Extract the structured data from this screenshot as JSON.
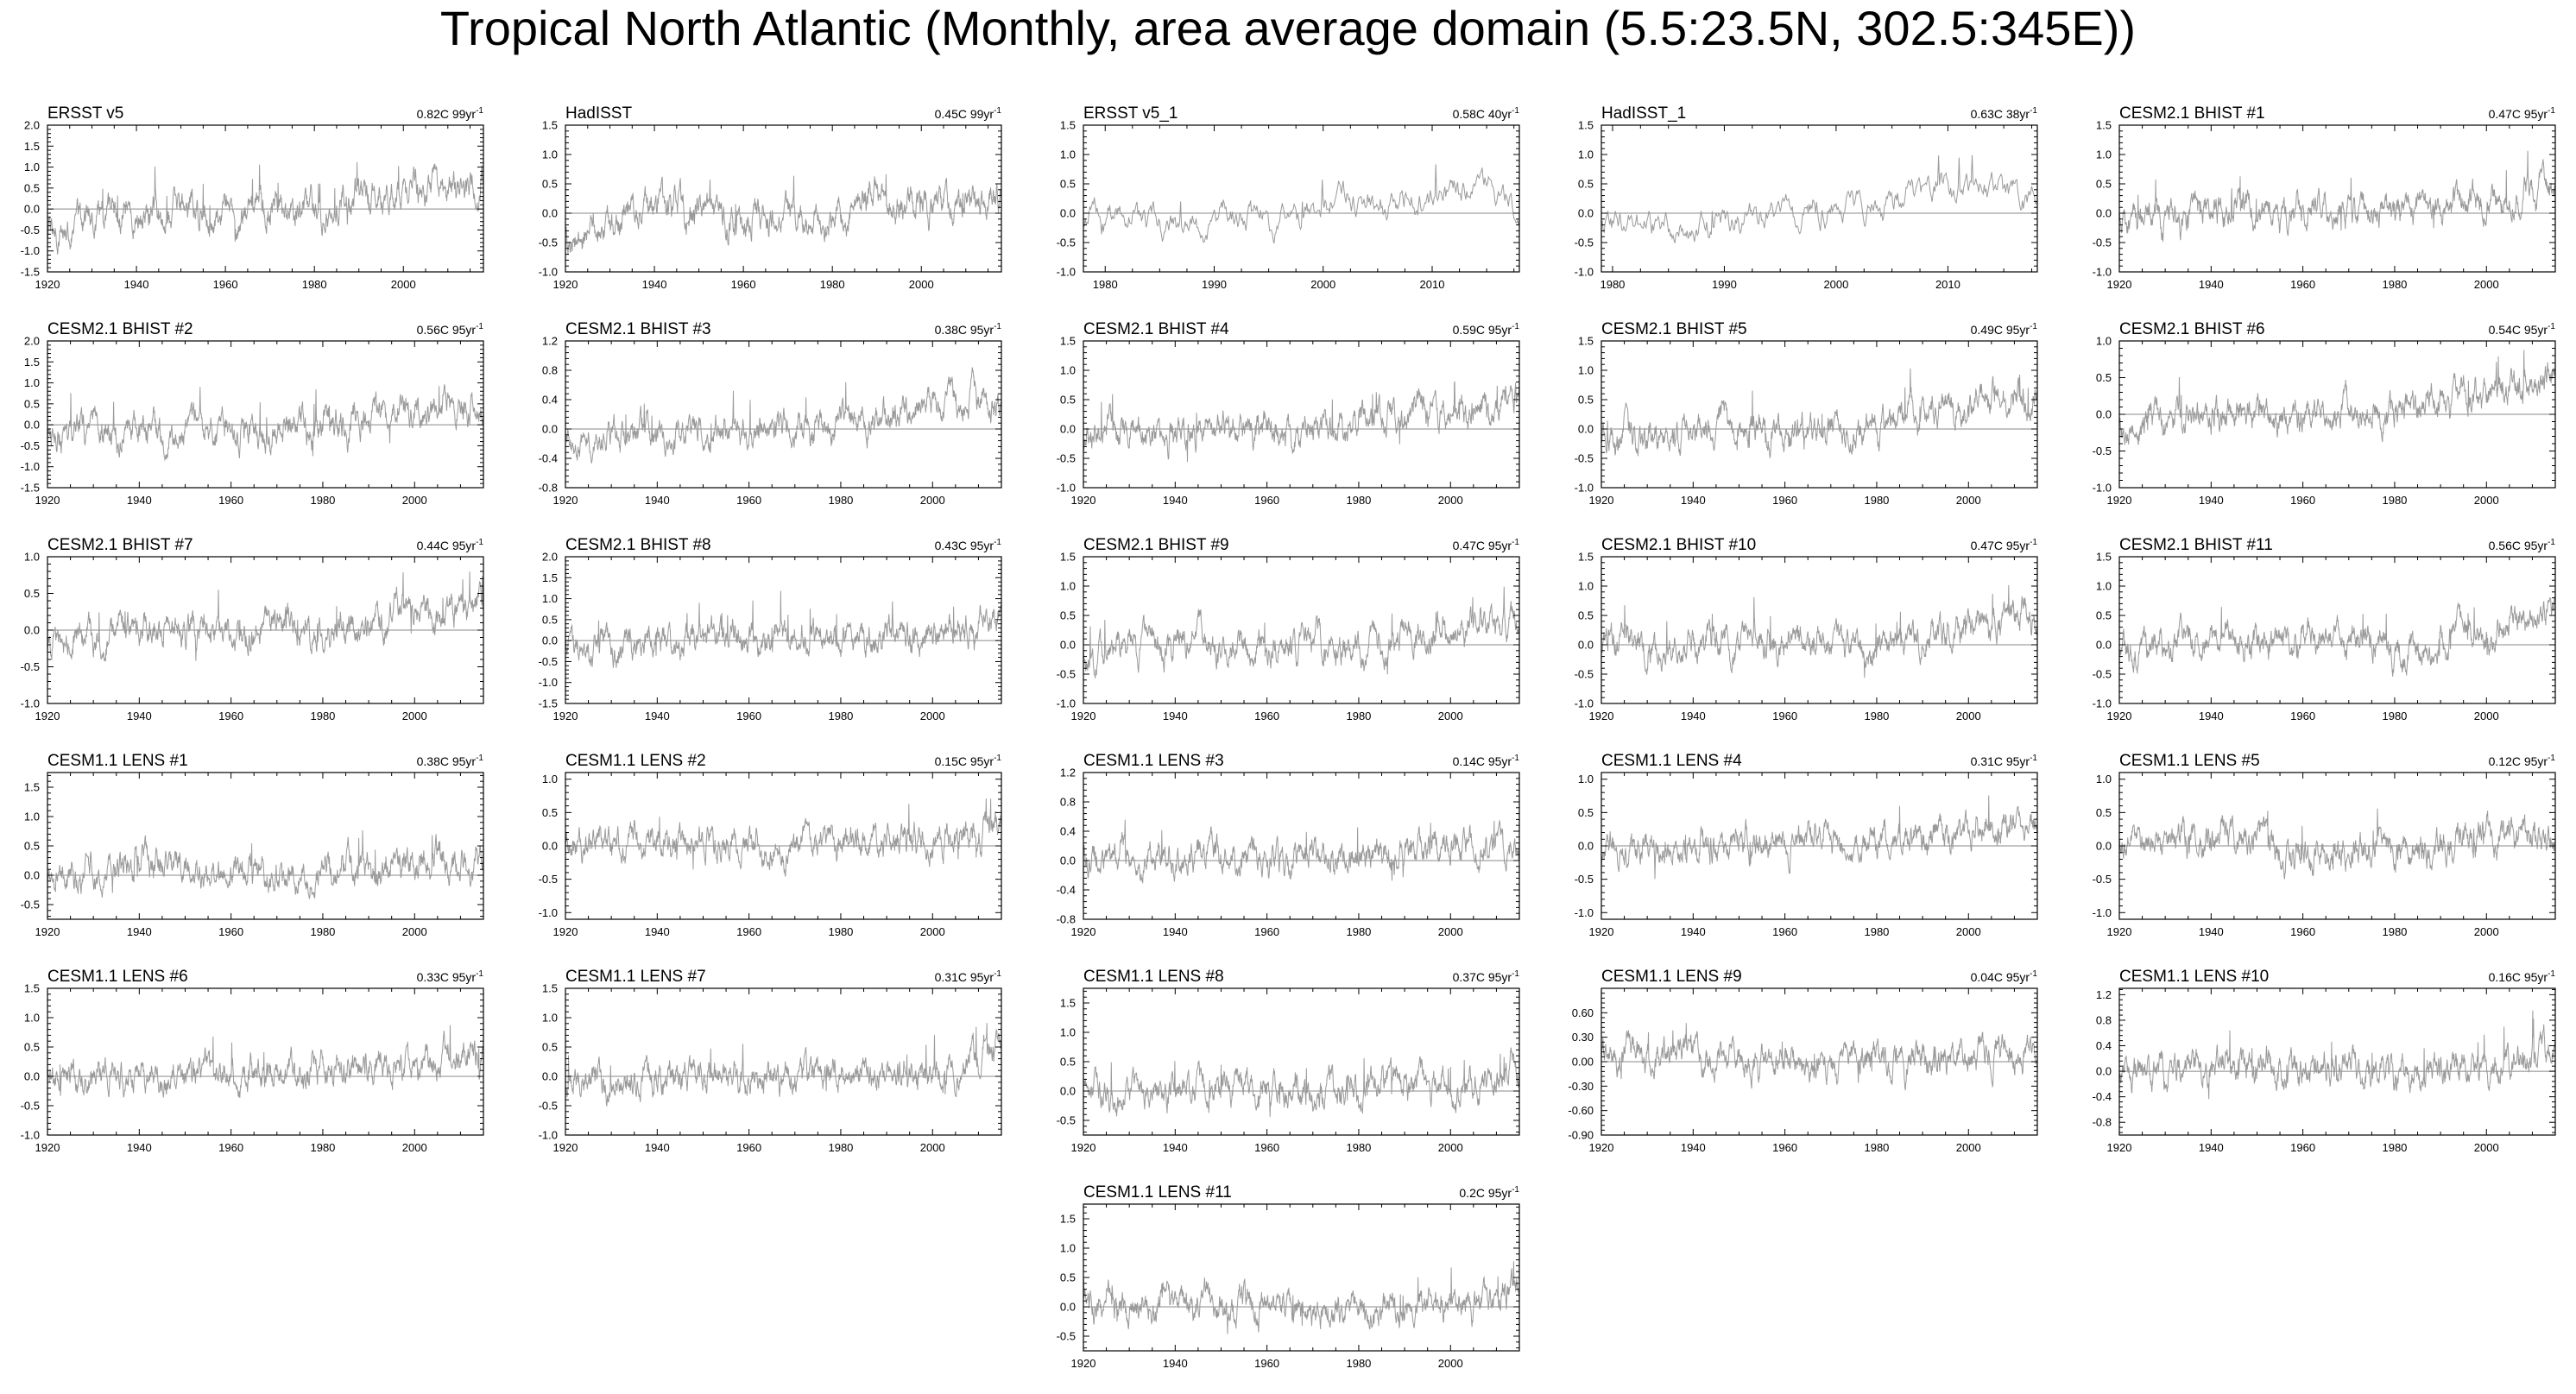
{
  "title": "Tropical North Atlantic (Monthly, area average domain (5.5:23.5N, 302.5:345E))",
  "colors": {
    "series": "#9a9a9a",
    "frame": "#000000",
    "zero": "#888888",
    "text": "#000000"
  },
  "chart_data": [
    {
      "type": "line",
      "title": "ERSST v5",
      "stat": "0.82C 99yr",
      "stat_exp": "-1",
      "xlim": [
        1920,
        2018
      ],
      "xticks": [
        1920,
        1940,
        1960,
        1980,
        2000
      ],
      "ylim": [
        -1.5,
        2.0
      ],
      "yticks": [
        "-1.5",
        "-1.0",
        "-0.5",
        "0.0",
        "0.5",
        "1.0",
        "1.5",
        "2.0"
      ],
      "x": [
        1920,
        1940,
        1960,
        1980,
        2000,
        2018
      ],
      "y": [
        -0.5,
        0.1,
        -0.1,
        0.0,
        0.4,
        0.6
      ]
    },
    {
      "type": "line",
      "title": "HadISST",
      "stat": "0.45C 99yr",
      "stat_exp": "-1",
      "xlim": [
        1920,
        2018
      ],
      "xticks": [
        1920,
        1940,
        1960,
        1980,
        2000
      ],
      "ylim": [
        -1.0,
        1.5
      ],
      "yticks": [
        "-1.0",
        "-0.5",
        "0.0",
        "0.5",
        "1.0",
        "1.5"
      ],
      "x": [
        1920,
        1940,
        1960,
        1980,
        2000,
        2018
      ],
      "y": [
        -0.4,
        0.1,
        0.0,
        0.0,
        0.2,
        0.3
      ]
    },
    {
      "type": "line",
      "title": "ERSST v5_1",
      "stat": "0.58C 40yr",
      "stat_exp": "-1",
      "xlim": [
        1978,
        2018
      ],
      "xticks": [
        1980,
        1990,
        2000,
        2010
      ],
      "ylim": [
        -1.0,
        1.5
      ],
      "yticks": [
        "-1.0",
        "-0.5",
        "0.0",
        "0.5",
        "1.0",
        "1.5"
      ],
      "x": [
        1978,
        1990,
        2000,
        2010,
        2018
      ],
      "y": [
        -0.1,
        -0.1,
        0.1,
        0.3,
        0.2
      ]
    },
    {
      "type": "line",
      "title": "HadISST_1",
      "stat": "0.63C 38yr",
      "stat_exp": "-1",
      "xlim": [
        1979,
        2018
      ],
      "xticks": [
        1980,
        1990,
        2000,
        2010
      ],
      "ylim": [
        -1.0,
        1.5
      ],
      "yticks": [
        "-1.0",
        "-0.5",
        "0.0",
        "0.5",
        "1.0",
        "1.5"
      ],
      "x": [
        1979,
        1990,
        2000,
        2010,
        2018
      ],
      "y": [
        -0.2,
        -0.2,
        0.1,
        0.4,
        0.2
      ]
    },
    {
      "type": "line",
      "title": "CESM2.1 BHIST #1",
      "stat": "0.47C 95yr",
      "stat_exp": "-1",
      "xlim": [
        1920,
        2015
      ],
      "xticks": [
        1920,
        1940,
        1960,
        1980,
        2000
      ],
      "ylim": [
        -1.0,
        1.5
      ],
      "yticks": [
        "-1.0",
        "-0.5",
        "0.0",
        "0.5",
        "1.0",
        "1.5"
      ],
      "x": [
        1920,
        1940,
        1960,
        1980,
        2000,
        2015
      ],
      "y": [
        -0.2,
        0.1,
        0.0,
        0.0,
        0.2,
        0.5
      ]
    },
    {
      "type": "line",
      "title": "CESM2.1 BHIST #2",
      "stat": "0.56C 95yr",
      "stat_exp": "-1",
      "xlim": [
        1920,
        2015
      ],
      "xticks": [
        1920,
        1940,
        1960,
        1980,
        2000
      ],
      "ylim": [
        -1.5,
        2.0
      ],
      "yticks": [
        "-1.5",
        "-1.0",
        "-0.5",
        "0.0",
        "0.5",
        "1.0",
        "1.5",
        "2.0"
      ],
      "x": [
        1920,
        1940,
        1960,
        1980,
        2000,
        2015
      ],
      "y": [
        -0.2,
        0.0,
        -0.1,
        0.0,
        0.3,
        0.5
      ]
    },
    {
      "type": "line",
      "title": "CESM2.1 BHIST #3",
      "stat": "0.38C 95yr",
      "stat_exp": "-1",
      "xlim": [
        1920,
        2015
      ],
      "xticks": [
        1920,
        1940,
        1960,
        1980,
        2000
      ],
      "ylim": [
        -0.8,
        1.2
      ],
      "yticks": [
        "-0.8",
        "-0.4",
        "0.0",
        "0.4",
        "0.8",
        "1.2"
      ],
      "x": [
        1920,
        1940,
        1960,
        1980,
        2000,
        2015
      ],
      "y": [
        -0.1,
        0.0,
        0.0,
        0.1,
        0.3,
        0.4
      ]
    },
    {
      "type": "line",
      "title": "CESM2.1 BHIST #4",
      "stat": "0.59C 95yr",
      "stat_exp": "-1",
      "xlim": [
        1920,
        2015
      ],
      "xticks": [
        1920,
        1940,
        1960,
        1980,
        2000
      ],
      "ylim": [
        -1.0,
        1.5
      ],
      "yticks": [
        "-1.0",
        "-0.5",
        "0.0",
        "0.5",
        "1.0",
        "1.5"
      ],
      "x": [
        1920,
        1940,
        1960,
        1980,
        2000,
        2015
      ],
      "y": [
        -0.2,
        0.0,
        0.0,
        0.1,
        0.3,
        0.5
      ]
    },
    {
      "type": "line",
      "title": "CESM2.1 BHIST #5",
      "stat": "0.49C 95yr",
      "stat_exp": "-1",
      "xlim": [
        1920,
        2015
      ],
      "xticks": [
        1920,
        1940,
        1960,
        1980,
        2000
      ],
      "ylim": [
        -1.0,
        1.5
      ],
      "yticks": [
        "-1.0",
        "-0.5",
        "0.0",
        "0.5",
        "1.0",
        "1.5"
      ],
      "x": [
        1920,
        1940,
        1960,
        1980,
        2000,
        2015
      ],
      "y": [
        -0.2,
        0.0,
        0.0,
        0.0,
        0.4,
        0.6
      ]
    },
    {
      "type": "line",
      "title": "CESM2.1 BHIST #6",
      "stat": "0.54C 95yr",
      "stat_exp": "-1",
      "xlim": [
        1920,
        2015
      ],
      "xticks": [
        1920,
        1940,
        1960,
        1980,
        2000
      ],
      "ylim": [
        -1.0,
        1.0
      ],
      "yticks": [
        "-1.0",
        "-0.5",
        "0.0",
        "0.5",
        "1.0"
      ],
      "x": [
        1920,
        1940,
        1960,
        1980,
        2000,
        2015
      ],
      "y": [
        -0.2,
        0.0,
        0.0,
        0.1,
        0.3,
        0.5
      ]
    },
    {
      "type": "line",
      "title": "CESM2.1 BHIST #7",
      "stat": "0.44C 95yr",
      "stat_exp": "-1",
      "xlim": [
        1920,
        2015
      ],
      "xticks": [
        1920,
        1940,
        1960,
        1980,
        2000
      ],
      "ylim": [
        -1.0,
        1.0
      ],
      "yticks": [
        "-1.0",
        "-0.5",
        "0.0",
        "0.5",
        "1.0"
      ],
      "x": [
        1920,
        1940,
        1960,
        1980,
        2000,
        2015
      ],
      "y": [
        -0.2,
        0.1,
        0.0,
        0.0,
        0.2,
        0.4
      ]
    },
    {
      "type": "line",
      "title": "CESM2.1 BHIST #8",
      "stat": "0.43C 95yr",
      "stat_exp": "-1",
      "xlim": [
        1920,
        2015
      ],
      "xticks": [
        1920,
        1940,
        1960,
        1980,
        2000
      ],
      "ylim": [
        -1.5,
        2.0
      ],
      "yticks": [
        "-1.5",
        "-1.0",
        "-0.5",
        "0.0",
        "0.5",
        "1.0",
        "1.5",
        "2.0"
      ],
      "x": [
        1920,
        1940,
        1960,
        1980,
        2000,
        2015
      ],
      "y": [
        -0.2,
        0.0,
        0.0,
        0.1,
        0.3,
        0.5
      ]
    },
    {
      "type": "line",
      "title": "CESM2.1 BHIST #9",
      "stat": "0.47C 95yr",
      "stat_exp": "-1",
      "xlim": [
        1920,
        2015
      ],
      "xticks": [
        1920,
        1940,
        1960,
        1980,
        2000
      ],
      "ylim": [
        -1.0,
        1.5
      ],
      "yticks": [
        "-1.0",
        "-0.5",
        "0.0",
        "0.5",
        "1.0",
        "1.5"
      ],
      "x": [
        1920,
        1940,
        1960,
        1980,
        2000,
        2015
      ],
      "y": [
        -0.2,
        0.1,
        0.0,
        0.0,
        0.3,
        0.5
      ]
    },
    {
      "type": "line",
      "title": "CESM2.1 BHIST #10",
      "stat": "0.47C 95yr",
      "stat_exp": "-1",
      "xlim": [
        1920,
        2015
      ],
      "xticks": [
        1920,
        1940,
        1960,
        1980,
        2000
      ],
      "ylim": [
        -1.0,
        1.5
      ],
      "yticks": [
        "-1.0",
        "-0.5",
        "0.0",
        "0.5",
        "1.0",
        "1.5"
      ],
      "x": [
        1920,
        1940,
        1960,
        1980,
        2000,
        2015
      ],
      "y": [
        0.0,
        -0.1,
        0.0,
        0.0,
        0.3,
        0.5
      ]
    },
    {
      "type": "line",
      "title": "CESM2.1 BHIST #11",
      "stat": "0.56C 95yr",
      "stat_exp": "-1",
      "xlim": [
        1920,
        2015
      ],
      "xticks": [
        1920,
        1940,
        1960,
        1980,
        2000
      ],
      "ylim": [
        -1.0,
        1.5
      ],
      "yticks": [
        "-1.0",
        "-0.5",
        "0.0",
        "0.5",
        "1.0",
        "1.5"
      ],
      "x": [
        1920,
        1940,
        1960,
        1980,
        2000,
        2015
      ],
      "y": [
        -0.2,
        0.1,
        0.0,
        0.0,
        0.3,
        0.6
      ]
    },
    {
      "type": "line",
      "title": "CESM1.1 LENS #1",
      "stat": "0.38C 95yr",
      "stat_exp": "-1",
      "xlim": [
        1920,
        2015
      ],
      "xticks": [
        1920,
        1940,
        1960,
        1980,
        2000
      ],
      "ylim": [
        -0.75,
        1.75
      ],
      "yticks": [
        "-0.5",
        "0.0",
        "0.5",
        "1.0",
        "1.5"
      ],
      "x": [
        1920,
        1940,
        1960,
        1980,
        2000,
        2015
      ],
      "y": [
        0.0,
        0.1,
        0.0,
        0.1,
        0.2,
        0.2
      ]
    },
    {
      "type": "line",
      "title": "CESM1.1 LENS #2",
      "stat": "0.15C 95yr",
      "stat_exp": "-1",
      "xlim": [
        1920,
        2015
      ],
      "xticks": [
        1920,
        1940,
        1960,
        1980,
        2000
      ],
      "ylim": [
        -1.1,
        1.1
      ],
      "yticks": [
        "-1.0",
        "-0.5",
        "0.0",
        "0.5",
        "1.0"
      ],
      "x": [
        1920,
        1940,
        1960,
        1980,
        2000,
        2015
      ],
      "y": [
        0.0,
        0.1,
        0.0,
        0.0,
        0.1,
        0.3
      ]
    },
    {
      "type": "line",
      "title": "CESM1.1 LENS #3",
      "stat": "0.14C 95yr",
      "stat_exp": "-1",
      "xlim": [
        1920,
        2015
      ],
      "xticks": [
        1920,
        1940,
        1960,
        1980,
        2000
      ],
      "ylim": [
        -0.8,
        1.2
      ],
      "yticks": [
        "-0.8",
        "-0.4",
        "0.0",
        "0.4",
        "0.8",
        "1.2"
      ],
      "x": [
        1920,
        1940,
        1960,
        1980,
        2000,
        2015
      ],
      "y": [
        0.0,
        0.1,
        0.0,
        0.1,
        0.1,
        0.2
      ]
    },
    {
      "type": "line",
      "title": "CESM1.1 LENS #4",
      "stat": "0.31C 95yr",
      "stat_exp": "-1",
      "xlim": [
        1920,
        2015
      ],
      "xticks": [
        1920,
        1940,
        1960,
        1980,
        2000
      ],
      "ylim": [
        -1.1,
        1.1
      ],
      "yticks": [
        "-1.0",
        "-0.5",
        "0.0",
        "0.5",
        "1.0"
      ],
      "x": [
        1920,
        1940,
        1960,
        1980,
        2000,
        2015
      ],
      "y": [
        -0.1,
        0.0,
        0.0,
        0.1,
        0.2,
        0.3
      ]
    },
    {
      "type": "line",
      "title": "CESM1.1 LENS #5",
      "stat": "0.12C 95yr",
      "stat_exp": "-1",
      "xlim": [
        1920,
        2015
      ],
      "xticks": [
        1920,
        1940,
        1960,
        1980,
        2000
      ],
      "ylim": [
        -1.1,
        1.1
      ],
      "yticks": [
        "-1.0",
        "-0.5",
        "0.0",
        "0.5",
        "1.0"
      ],
      "x": [
        1920,
        1940,
        1960,
        1980,
        2000,
        2015
      ],
      "y": [
        0.1,
        0.1,
        0.0,
        -0.1,
        0.1,
        0.2
      ]
    },
    {
      "type": "line",
      "title": "CESM1.1 LENS #6",
      "stat": "0.33C 95yr",
      "stat_exp": "-1",
      "xlim": [
        1920,
        2015
      ],
      "xticks": [
        1920,
        1940,
        1960,
        1980,
        2000
      ],
      "ylim": [
        -1.0,
        1.5
      ],
      "yticks": [
        "-1.0",
        "-0.5",
        "0.0",
        "0.5",
        "1.0",
        "1.5"
      ],
      "x": [
        1920,
        1940,
        1960,
        1980,
        2000,
        2015
      ],
      "y": [
        0.0,
        0.0,
        0.0,
        0.1,
        0.1,
        0.4
      ]
    },
    {
      "type": "line",
      "title": "CESM1.1 LENS #7",
      "stat": "0.31C 95yr",
      "stat_exp": "-1",
      "xlim": [
        1920,
        2015
      ],
      "xticks": [
        1920,
        1940,
        1960,
        1980,
        2000
      ],
      "ylim": [
        -1.0,
        1.5
      ],
      "yticks": [
        "-1.0",
        "-0.5",
        "0.0",
        "0.5",
        "1.0",
        "1.5"
      ],
      "x": [
        1920,
        1940,
        1960,
        1980,
        2000,
        2015
      ],
      "y": [
        -0.2,
        0.0,
        0.0,
        0.0,
        0.1,
        0.5
      ]
    },
    {
      "type": "line",
      "title": "CESM1.1 LENS #8",
      "stat": "0.37C 95yr",
      "stat_exp": "-1",
      "xlim": [
        1920,
        2015
      ],
      "xticks": [
        1920,
        1940,
        1960,
        1980,
        2000
      ],
      "ylim": [
        -0.75,
        1.75
      ],
      "yticks": [
        "-0.5",
        "0.0",
        "0.5",
        "1.0",
        "1.5"
      ],
      "x": [
        1920,
        1940,
        1960,
        1980,
        2000,
        2015
      ],
      "y": [
        0.0,
        0.0,
        0.1,
        0.0,
        0.1,
        0.5
      ]
    },
    {
      "type": "line",
      "title": "CESM1.1 LENS #9",
      "stat": "0.04C 95yr",
      "stat_exp": "-1",
      "xlim": [
        1920,
        2015
      ],
      "xticks": [
        1920,
        1940,
        1960,
        1980,
        2000
      ],
      "ylim": [
        -0.9,
        0.9
      ],
      "yticks": [
        "-0.90",
        "-0.60",
        "-0.30",
        "0.00",
        "0.30",
        "0.60"
      ],
      "x": [
        1920,
        1940,
        1960,
        1980,
        2000,
        2015
      ],
      "y": [
        0.1,
        0.1,
        0.0,
        0.0,
        0.1,
        0.2
      ]
    },
    {
      "type": "line",
      "title": "CESM1.1 LENS #10",
      "stat": "0.16C 95yr",
      "stat_exp": "-1",
      "xlim": [
        1920,
        2015
      ],
      "xticks": [
        1920,
        1940,
        1960,
        1980,
        2000
      ],
      "ylim": [
        -1.0,
        1.3
      ],
      "yticks": [
        "-0.8",
        "-0.4",
        "0.0",
        "0.4",
        "0.8",
        "1.2"
      ],
      "x": [
        1920,
        1940,
        1960,
        1980,
        2000,
        2015
      ],
      "y": [
        0.0,
        0.1,
        0.0,
        0.0,
        0.1,
        0.3
      ]
    },
    {
      "type": "line",
      "title": "CESM1.1 LENS #11",
      "stat": "0.2C 95yr",
      "stat_exp": "-1",
      "xlim": [
        1920,
        2015
      ],
      "xticks": [
        1920,
        1940,
        1960,
        1980,
        2000
      ],
      "ylim": [
        -0.75,
        1.75
      ],
      "yticks": [
        "-0.5",
        "0.0",
        "0.5",
        "1.0",
        "1.5"
      ],
      "x": [
        1920,
        1940,
        1960,
        1980,
        2000,
        2015
      ],
      "y": [
        0.0,
        0.1,
        0.0,
        0.0,
        0.0,
        0.3
      ]
    }
  ]
}
